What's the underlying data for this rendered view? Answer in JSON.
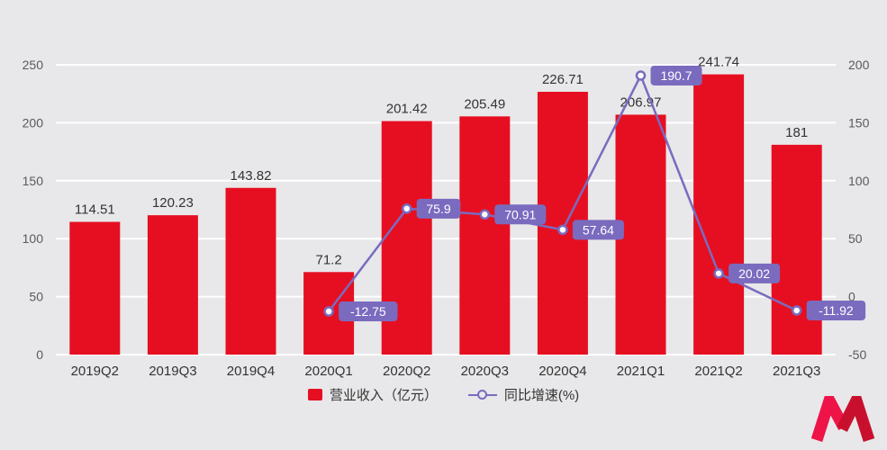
{
  "colors": {
    "background": "#e8e8ea",
    "bar": "#e60f21",
    "line": "#7a6bbf",
    "badge": "#7a6bbf",
    "badge_text": "#ffffff",
    "grid": "#ffffff",
    "axis_text": "#5a5a5a",
    "bar_label": "#333333",
    "category_label": "#333333",
    "logo_left": "#ee1448",
    "logo_right": "#c8102e"
  },
  "chart_data": {
    "type": "bar+line",
    "categories": [
      "2019Q2",
      "2019Q3",
      "2019Q4",
      "2020Q1",
      "2020Q2",
      "2020Q3",
      "2020Q4",
      "2021Q1",
      "2021Q2",
      "2021Q3"
    ],
    "series": [
      {
        "name": "营业收入（亿元）",
        "type": "bar",
        "axis": "left",
        "values": [
          114.51,
          120.23,
          143.82,
          71.2,
          201.42,
          205.49,
          226.71,
          206.97,
          241.74,
          181
        ]
      },
      {
        "name": "同比增速(%)",
        "type": "line",
        "axis": "right",
        "values": [
          null,
          null,
          null,
          -12.75,
          75.9,
          70.91,
          57.64,
          190.7,
          20.02,
          -11.92
        ]
      }
    ],
    "left_axis": {
      "min": 0,
      "max": 250,
      "ticks": [
        0,
        50,
        100,
        150,
        200,
        250
      ]
    },
    "right_axis": {
      "min": -50,
      "max": 200,
      "ticks": [
        -50,
        0,
        50,
        100,
        150,
        200
      ]
    },
    "grid": true,
    "legend_position": "bottom"
  },
  "legend": {
    "bar_label": "营业收入（亿元）",
    "line_label": "同比增速(%)"
  }
}
